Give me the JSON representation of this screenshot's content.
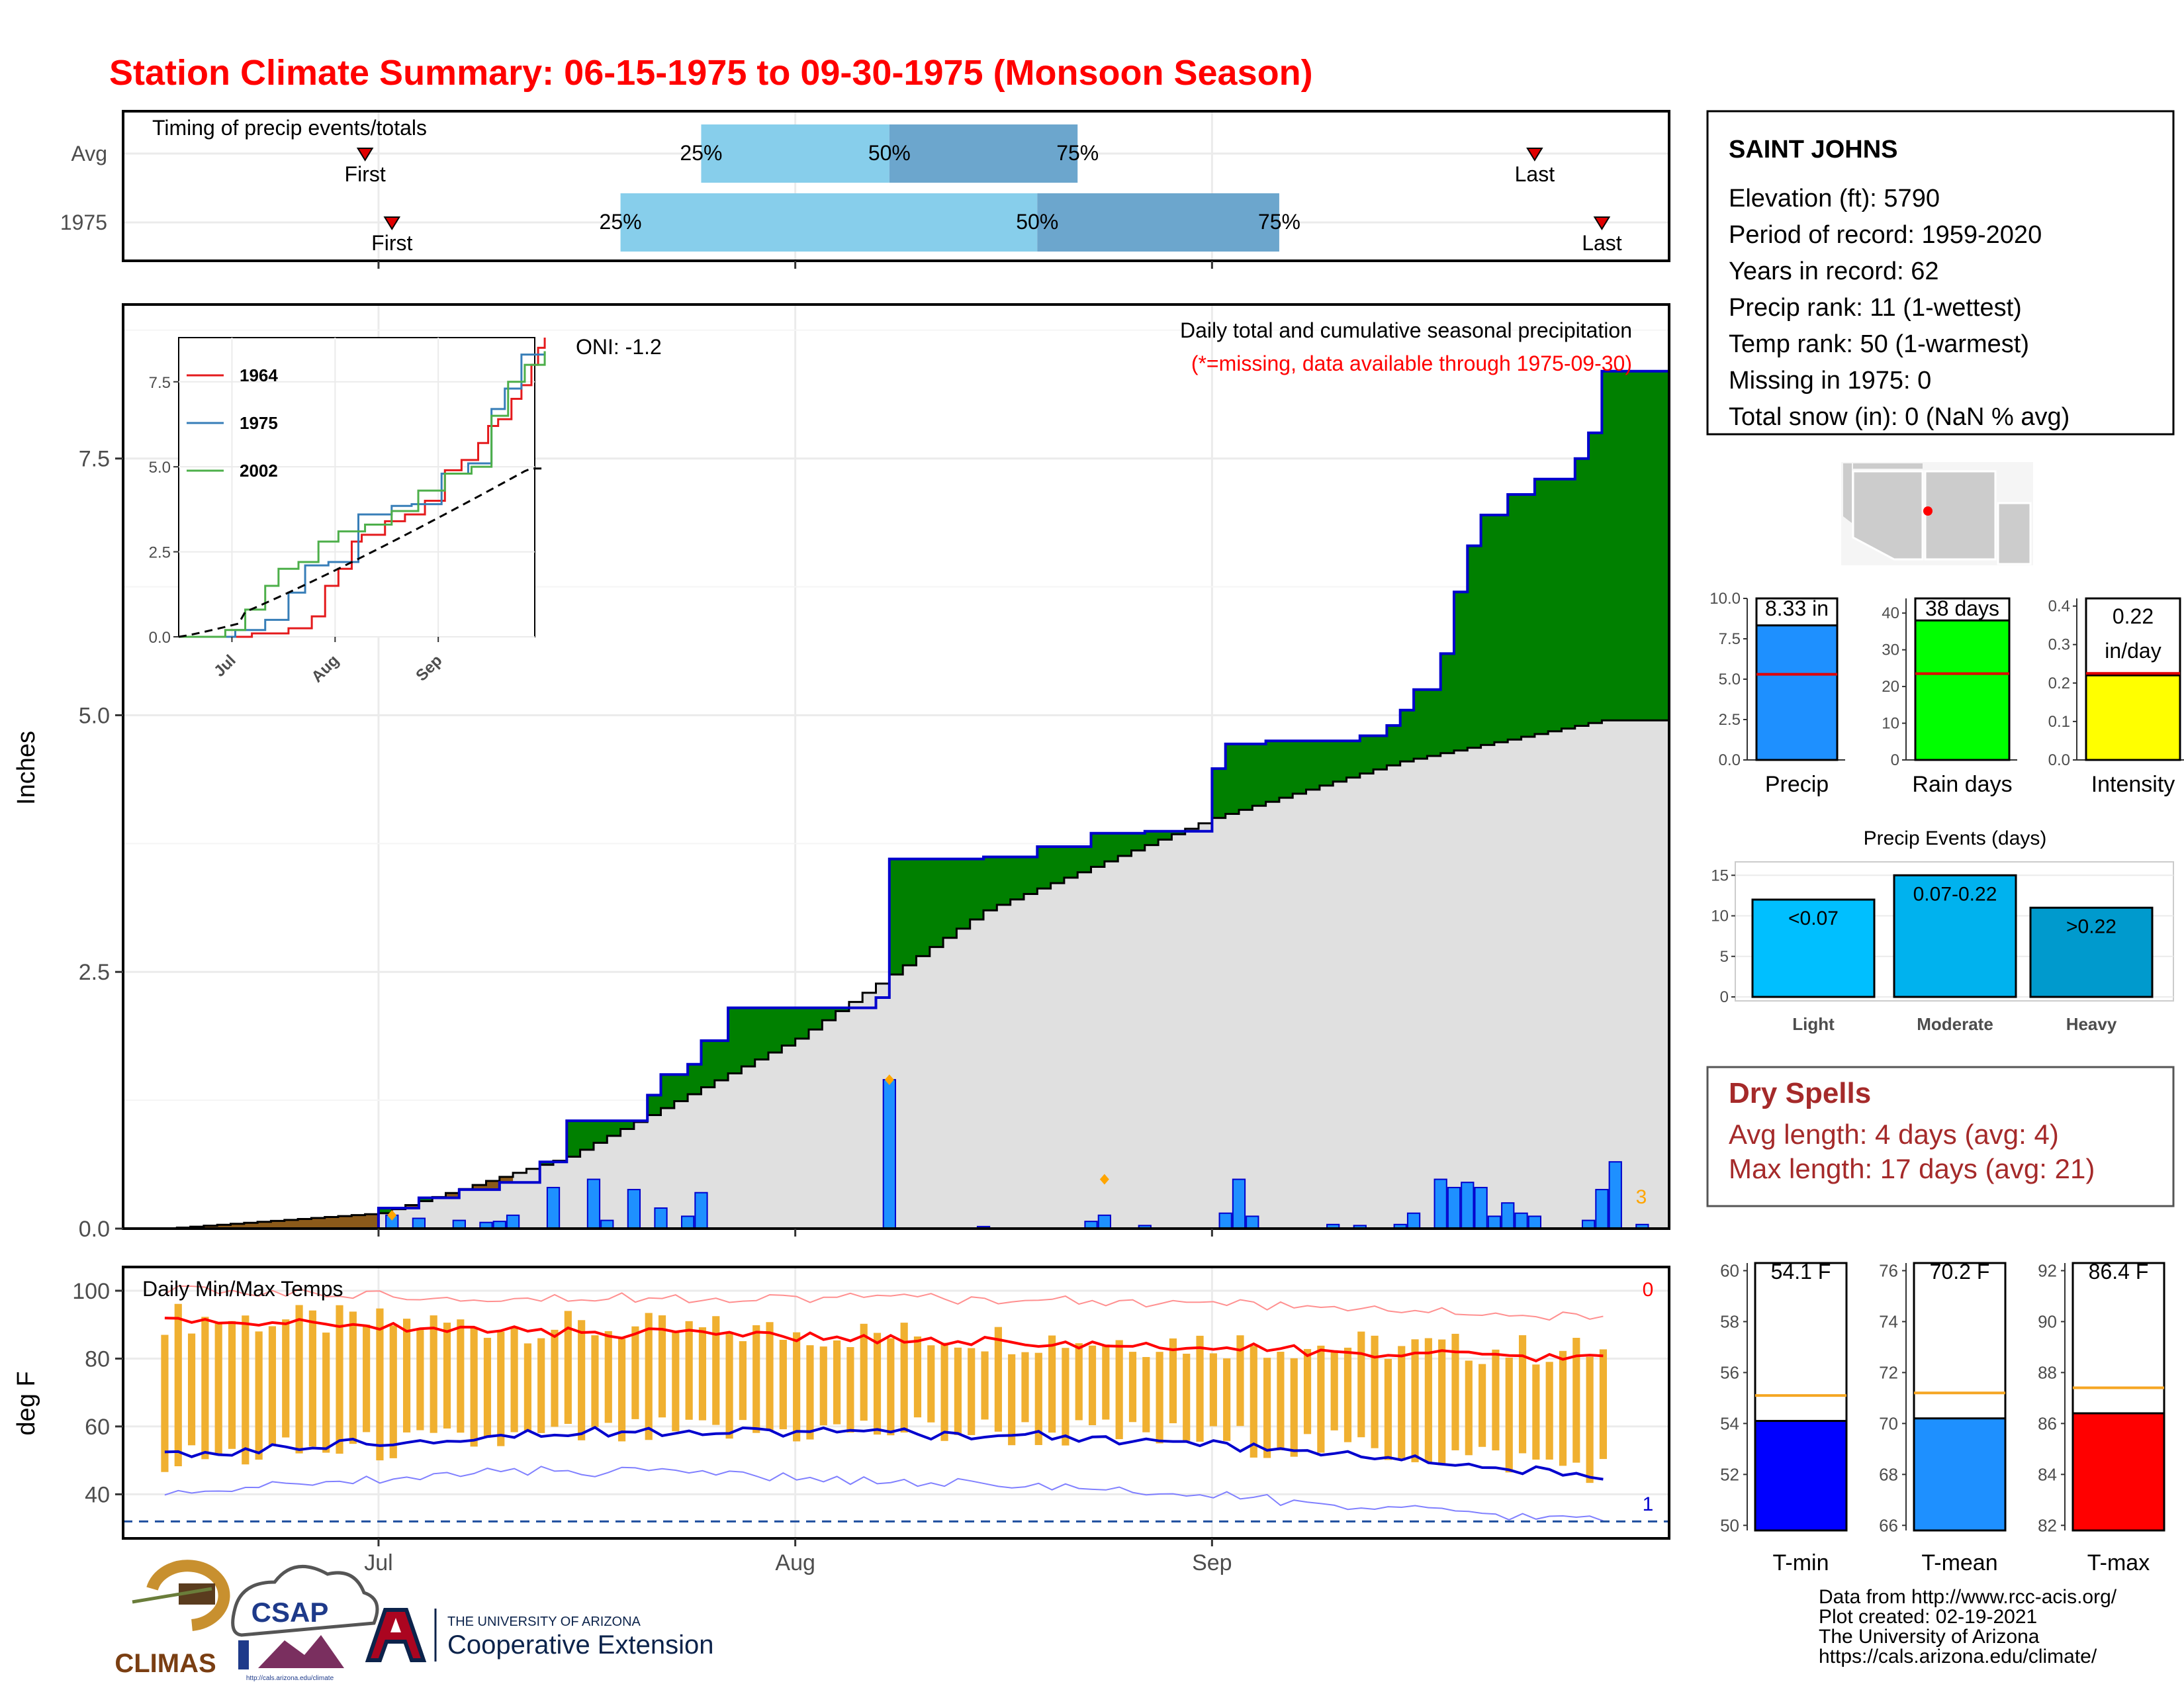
{
  "title": "Station Climate Summary: 06-15-1975 to 09-30-1975 (Monsoon Season)",
  "colors": {
    "title": "#ff0000",
    "cum_green": "#008000",
    "cum_avg": "#e0e0e0",
    "bar_blue": "#1e90ff",
    "tmax_red": "#ff0000",
    "tmin_blue": "#0000cd",
    "temp_bar": "#f0b030",
    "dry_spell_red": "#a52a2a",
    "raindays_green": "#00ff00",
    "intensity_yellow": "#ffff00"
  },
  "timing": {
    "label": "Timing of precip events/totals",
    "rows": [
      {
        "name": "Avg",
        "first": "06-30",
        "q25": "07-25",
        "q50": "08-08",
        "q75": "08-22",
        "last": "09-25",
        "first_label": "First",
        "last_label": "Last",
        "q25_label": "25%",
        "q50_label": "50%",
        "q75_label": "75%"
      },
      {
        "name": "1975",
        "first": "07-02",
        "q25": "07-19",
        "q50": "08-19",
        "q75": "09-06",
        "last": "09-30",
        "first_label": "First",
        "last_label": "Last",
        "q25_label": "25%",
        "q50_label": "50%",
        "q75_label": "75%"
      }
    ]
  },
  "main": {
    "oni": "ONI: -1.2",
    "legend_line1": "Daily total and cumulative seasonal precipitation",
    "legend_line2": "(*=missing, data available through 1975-09-30)",
    "ylabel": "Inches",
    "count_label": "3",
    "y_ticks": [
      "0.0",
      "2.5",
      "5.0",
      "7.5"
    ]
  },
  "inset": {
    "y_ticks": [
      "0.0",
      "2.5",
      "5.0",
      "7.5"
    ],
    "x_ticks": [
      "Jul",
      "Aug",
      "Sep"
    ],
    "legend": [
      "1964",
      "1975",
      "2002"
    ]
  },
  "temps": {
    "label": "Daily Min/Max Temps",
    "ylabel": "deg F",
    "y_ticks": [
      "40",
      "60",
      "80",
      "100"
    ],
    "count_hi": "0",
    "count_lo": "1"
  },
  "x_ticks": [
    "Jul",
    "Aug",
    "Sep"
  ],
  "station": {
    "name": "SAINT JOHNS",
    "lines": [
      "Elevation (ft): 5790",
      "Period of record: 1959-2020",
      "Years in record: 62",
      "Precip rank: 11 (1-wettest)",
      "Temp rank: 50 (1-warmest)",
      "Missing in 1975: 0",
      "Total snow (in): 0 (NaN % avg)"
    ]
  },
  "summary_bars": [
    {
      "name": "Precip",
      "value": 8.33,
      "avg": 5.3,
      "label": "8.33 in",
      "ymax": 10,
      "ticks": [
        "0.0",
        "2.5",
        "5.0",
        "7.5",
        "10.0"
      ],
      "color": "#1e90ff"
    },
    {
      "name": "Rain days",
      "value": 38,
      "avg": 23.5,
      "label": "38 days",
      "ymax": 44,
      "ticks": [
        "0",
        "10",
        "20",
        "30",
        "40"
      ],
      "color": "#00ff00"
    },
    {
      "name": "Intensity",
      "value": 0.22,
      "avg": 0.225,
      "label": "0.22",
      "label2": "in/day",
      "ymax": 0.42,
      "ticks": [
        "0.0",
        "0.1",
        "0.2",
        "0.3",
        "0.4"
      ],
      "color": "#ffff00"
    }
  ],
  "events": {
    "title": "Precip Events (days)",
    "ticks": [
      "0",
      "5",
      "10",
      "15"
    ],
    "bars": [
      {
        "cat": "Light",
        "label": "<0.07",
        "value": 12,
        "color": "#00bfff"
      },
      {
        "cat": "Moderate",
        "label": "0.07-0.22",
        "value": 15,
        "color": "#00b2ee"
      },
      {
        "cat": "Heavy",
        "label": ">0.22",
        "value": 11,
        "color": "#009acd"
      }
    ]
  },
  "dry_spells": {
    "title": "Dry Spells",
    "line1": "Avg length: 4 days (avg: 4)",
    "line2": "Max length: 17 days (avg: 21)"
  },
  "temp_bars": [
    {
      "name": "T-min",
      "value": 54.1,
      "avg": 55.1,
      "label": "54.1 F",
      "ymin": 49.8,
      "ymax": 60.3,
      "ticks": [
        "50",
        "52",
        "54",
        "56",
        "58",
        "60"
      ],
      "color": "#0000ff"
    },
    {
      "name": "T-mean",
      "value": 70.2,
      "avg": 71.2,
      "label": "70.2 F",
      "ymin": 65.8,
      "ymax": 76.3,
      "ticks": [
        "66",
        "68",
        "70",
        "72",
        "74",
        "76"
      ],
      "color": "#1e90ff"
    },
    {
      "name": "T-max",
      "value": 86.4,
      "avg": 87.4,
      "label": "86.4 F",
      "ymin": 81.8,
      "ymax": 92.3,
      "ticks": [
        "82",
        "84",
        "86",
        "88",
        "90",
        "92"
      ],
      "color": "#ff0000"
    }
  ],
  "footer": {
    "lines": [
      "Data from http://www.rcc-acis.org/",
      "Plot created: 02-19-2021",
      "The University of Arizona",
      "https://cals.arizona.edu/climate/"
    ],
    "logo_climas": "CLIMAS",
    "logo_csap": "CSAP",
    "logo_csap_url": "http://cals.arizona.edu/climate",
    "ua_line1": "THE UNIVERSITY OF ARIZONA",
    "ua_line2": "Cooperative Extension"
  },
  "chart_data": [
    {
      "type": "area",
      "title": "Daily total and cumulative seasonal precipitation",
      "ylabel": "Inches",
      "x_range": [
        "06-15",
        "09-30"
      ],
      "ylim": [
        0,
        9.0
      ],
      "series": [
        {
          "name": "",
          "kind": "cumulative",
          "points": [
            [
              "06-15",
              0
            ],
            [
              "07-01",
              0.2
            ],
            [
              "07-02",
              0.2
            ],
            [
              "07-04",
              0.3
            ],
            [
              "07-07",
              0.38
            ],
            [
              "07-10",
              0.45
            ],
            [
              "07-13",
              0.65
            ],
            [
              "07-15",
              1.05
            ],
            [
              "07-18",
              1.05
            ],
            [
              "07-21",
              1.3
            ],
            [
              "07-22",
              1.5
            ],
            [
              "07-24",
              1.6
            ],
            [
              "07-25",
              1.83
            ],
            [
              "07-27",
              2.15
            ],
            [
              "08-07",
              2.25
            ],
            [
              "08-08",
              3.6
            ],
            [
              "08-15",
              3.62
            ],
            [
              "08-19",
              3.72
            ],
            [
              "08-23",
              3.85
            ],
            [
              "08-27",
              3.87
            ],
            [
              "09-01",
              4.48
            ],
            [
              "09-02",
              4.72
            ],
            [
              "09-05",
              4.75
            ],
            [
              "09-12",
              4.8
            ],
            [
              "09-14",
              4.9
            ],
            [
              "09-15",
              5.05
            ],
            [
              "09-16",
              5.25
            ],
            [
              "09-18",
              5.6
            ],
            [
              "09-19",
              6.2
            ],
            [
              "09-20",
              6.65
            ],
            [
              "09-21",
              6.95
            ],
            [
              "09-23",
              7.15
            ],
            [
              "09-25",
              7.3
            ],
            [
              "09-28",
              7.5
            ],
            [
              "09-29",
              7.75
            ],
            [
              "09-30",
              8.35
            ]
          ]
        },
        {
          "name": "",
          "kind": "average",
          "points": [
            [
              "06-15",
              0
            ],
            [
              "07-01",
              0.15
            ],
            [
              "07-15",
              0.7
            ],
            [
              "08-01",
              1.85
            ],
            [
              "08-15",
              3.1
            ],
            [
              "09-01",
              4.0
            ],
            [
              "09-15",
              4.55
            ],
            [
              "09-30",
              4.95
            ]
          ]
        }
      ],
      "daily_bars": [
        [
          "07-02",
          0.13
        ],
        [
          "07-04",
          0.1
        ],
        [
          "07-07",
          0.08
        ],
        [
          "07-09",
          0.06
        ],
        [
          "07-10",
          0.07
        ],
        [
          "07-11",
          0.13
        ],
        [
          "07-14",
          0.4
        ],
        [
          "07-17",
          0.48
        ],
        [
          "07-18",
          0.08
        ],
        [
          "07-20",
          0.38
        ],
        [
          "07-22",
          0.2
        ],
        [
          "07-24",
          0.12
        ],
        [
          "07-25",
          0.35
        ],
        [
          "08-08",
          1.45
        ],
        [
          "08-15",
          0.02
        ],
        [
          "08-23",
          0.07
        ],
        [
          "08-24",
          0.13
        ],
        [
          "08-27",
          0.03
        ],
        [
          "09-02",
          0.15
        ],
        [
          "09-03",
          0.48
        ],
        [
          "09-04",
          0.12
        ],
        [
          "09-10",
          0.04
        ],
        [
          "09-12",
          0.03
        ],
        [
          "09-15",
          0.04
        ],
        [
          "09-16",
          0.15
        ],
        [
          "09-18",
          0.48
        ],
        [
          "09-19",
          0.4
        ],
        [
          "09-20",
          0.45
        ],
        [
          "09-21",
          0.4
        ],
        [
          "09-22",
          0.12
        ],
        [
          "09-23",
          0.25
        ],
        [
          "09-24",
          0.15
        ],
        [
          "09-25",
          0.12
        ],
        [
          "09-29",
          0.08
        ],
        [
          "09-30",
          0.38
        ],
        [
          "10-01",
          0.65
        ],
        [
          "10-03",
          0.04
        ]
      ]
    },
    {
      "type": "line",
      "title": "",
      "x": [
        "Jul",
        "Aug",
        "Sep"
      ],
      "ylim": [
        0,
        8.8
      ],
      "series": [
        {
          "name": "1964",
          "color": "#e41a1c"
        },
        {
          "name": "1975",
          "color": "#377eb8"
        },
        {
          "name": "2002",
          "color": "#4daf4a"
        },
        {
          "name": "",
          "color": "#000000",
          "dashed": true
        }
      ]
    },
    {
      "type": "bar",
      "title": "Daily Min/Max Temps",
      "ylabel": "deg F",
      "ylim": [
        27,
        107
      ],
      "series": [
        {
          "name": "",
          "kind": "avg_max",
          "values": [
            91,
            90,
            88,
            87,
            86,
            84,
            83,
            81,
            80
          ]
        },
        {
          "name": "",
          "kind": "avg_min",
          "values": [
            51,
            55,
            58,
            59,
            58,
            57,
            54,
            50,
            45
          ]
        }
      ]
    }
  ]
}
